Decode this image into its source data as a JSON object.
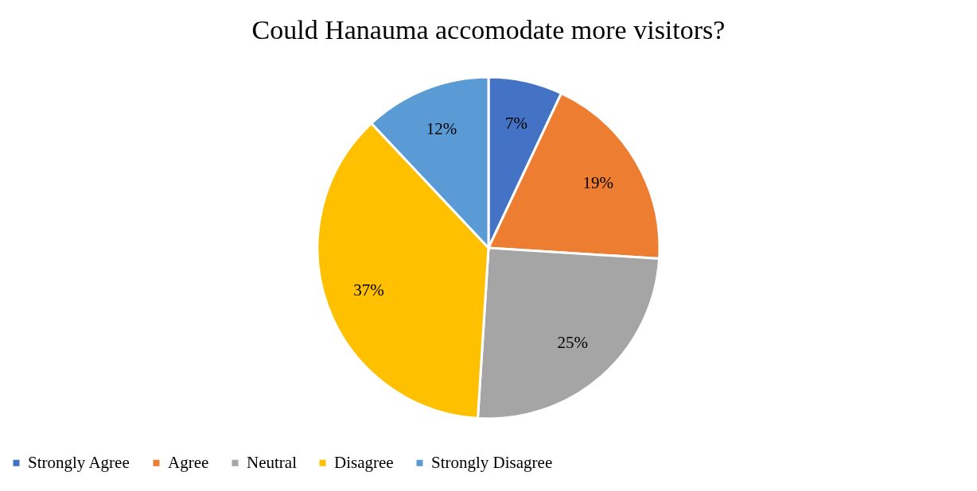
{
  "chart_data": {
    "type": "pie",
    "title": "Could Hanauma accomodate more visitors?",
    "categories": [
      "Strongly Agree",
      "Agree",
      "Neutral",
      "Disagree",
      "Strongly Disagree"
    ],
    "values": [
      7,
      19,
      25,
      37,
      12
    ],
    "colors": [
      "#4472c4",
      "#ed7d31",
      "#a5a5a5",
      "#ffc000",
      "#5b9bd5"
    ],
    "value_labels": [
      "7%",
      "19%",
      "25%",
      "37%",
      "12%"
    ],
    "legend": "bottom"
  }
}
